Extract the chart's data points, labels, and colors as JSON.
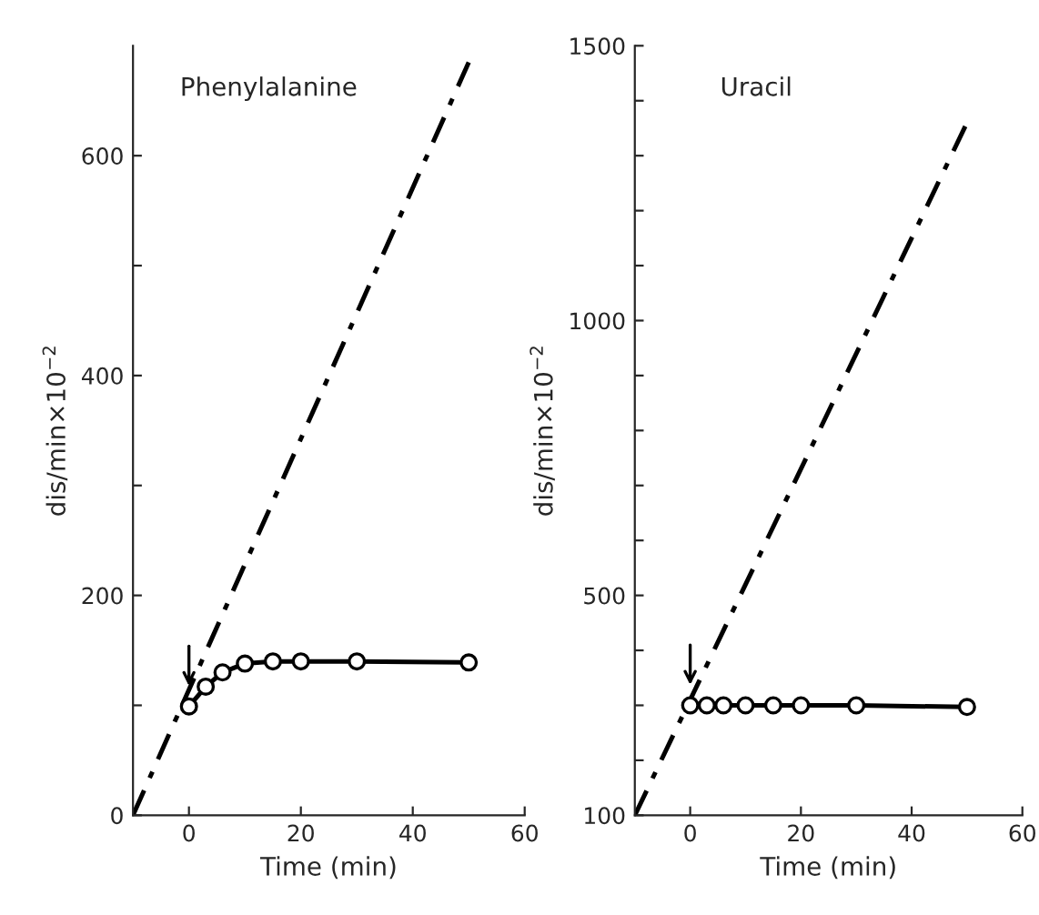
{
  "chart_data": [
    {
      "type": "line",
      "title": "Phenylalanine",
      "xlabel": "Time (min)",
      "ylabel": "dis/min×10$^{−2}$",
      "xlim": [
        -10,
        60
      ],
      "xticks": [
        0,
        20,
        40,
        60
      ],
      "ylim": [
        0,
        700
      ],
      "yticks": [
        0,
        {
          "value": 100,
          "label": null
        },
        200,
        {
          "value": 300,
          "label": null
        },
        400,
        {
          "value": 500,
          "label": null
        },
        600
      ],
      "grid": false,
      "legend": false,
      "series": [
        {
          "color": "#000000",
          "x": [
            -10,
            50
          ],
          "values": [
            0,
            685
          ],
          "line_style": "dashed",
          "marker": "none"
        },
        {
          "color": "#000000",
          "x": [
            0,
            3,
            6,
            10,
            15,
            20,
            30,
            50
          ],
          "values": [
            99,
            117,
            130,
            138,
            140,
            140,
            140,
            139
          ],
          "line_style": "solid",
          "marker": "circle"
        }
      ]
    },
    {
      "type": "line",
      "title": "Uracil",
      "xlabel": "Time (min)",
      "ylabel": "dis/min×10$^{−2}$",
      "xlim": [
        -10,
        60
      ],
      "xticks": [
        0,
        20,
        40,
        60
      ],
      "ylim": [
        100,
        1500
      ],
      "yticks": [
        100,
        {
          "value": 200,
          "label": null
        },
        {
          "value": 300,
          "label": null
        },
        {
          "value": 400,
          "label": null
        },
        500,
        {
          "value": 600,
          "label": null
        },
        {
          "value": 700,
          "label": null
        },
        {
          "value": 800,
          "label": null
        },
        {
          "value": 900,
          "label": null
        },
        1000,
        {
          "value": 1100,
          "label": null
        },
        {
          "value": 1200,
          "label": null
        },
        {
          "value": 1300,
          "label": null
        },
        {
          "value": 1400,
          "label": null
        },
        1500
      ],
      "grid": false,
      "legend": false,
      "series": [
        {
          "color": "#000000",
          "x": [
            -10,
            50
          ],
          "values": [
            100,
            1360
          ],
          "line_style": "dashed",
          "marker": "none"
        },
        {
          "color": "#000000",
          "x": [
            0,
            3,
            6,
            10,
            15,
            20,
            30,
            50
          ],
          "values": [
            300,
            300,
            300,
            300,
            300,
            300,
            300,
            297
          ],
          "line_style": "solid",
          "marker": "circle"
        }
      ]
    }
  ]
}
